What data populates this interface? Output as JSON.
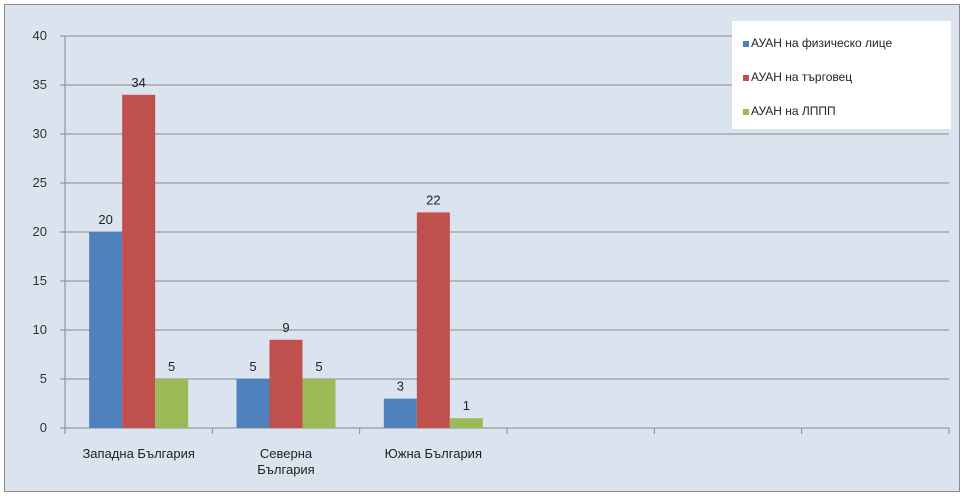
{
  "chart_data": {
    "type": "bar",
    "categories": [
      "Западна България",
      "Северна|България",
      "Южна България",
      "",
      "",
      ""
    ],
    "series": [
      {
        "name": "АУАН на физическо лице",
        "color": "#4f81bd",
        "values": [
          20,
          5,
          3,
          null,
          null,
          null
        ]
      },
      {
        "name": "АУАН на търговец",
        "color": "#c0504d",
        "values": [
          34,
          9,
          22,
          null,
          null,
          null
        ]
      },
      {
        "name": "АУАН на ЛППП",
        "color": "#9bbb59",
        "values": [
          5,
          5,
          1,
          null,
          null,
          null
        ]
      }
    ],
    "ylim": [
      0,
      40
    ],
    "yticks": [
      0,
      5,
      10,
      15,
      20,
      25,
      30,
      35,
      40
    ],
    "grid": true,
    "legend_position": "top-right",
    "data_labels": true
  }
}
